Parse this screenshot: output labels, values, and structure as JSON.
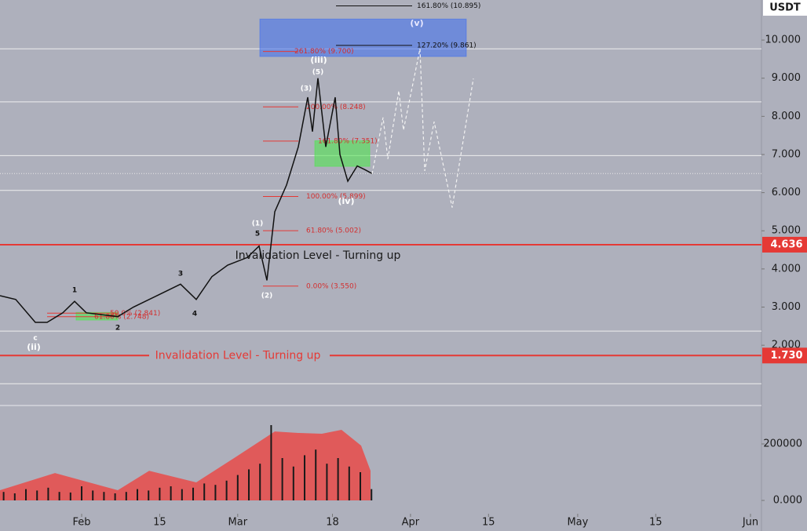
{
  "chart_data": {
    "type": "line",
    "currency": "USDT",
    "xlim": [
      16.35,
      152.97
    ],
    "xticks": [
      {
        "value": 31,
        "label": "Feb"
      },
      {
        "value": 45,
        "label": "15"
      },
      {
        "value": 59,
        "label": "Mar"
      },
      {
        "value": 76,
        "label": "18"
      },
      {
        "value": 90,
        "label": "Apr"
      },
      {
        "value": 104,
        "label": "15"
      },
      {
        "value": 120,
        "label": "May"
      },
      {
        "value": 134,
        "label": "15"
      },
      {
        "value": 151,
        "label": "Jun"
      }
    ],
    "ylim": [
      0.42,
      11.05
    ],
    "yticks": [
      {
        "value": 2,
        "label": "2.000"
      },
      {
        "value": 3,
        "label": "3.000"
      },
      {
        "value": 4,
        "label": "4.000"
      },
      {
        "value": 5,
        "label": "5.000"
      },
      {
        "value": 6,
        "label": "6.000"
      },
      {
        "value": 7,
        "label": "7.000"
      },
      {
        "value": 8,
        "label": "8.000"
      },
      {
        "value": 9,
        "label": "9.000"
      },
      {
        "value": 10,
        "label": "10.000"
      }
    ],
    "series": [
      {
        "color": "#111111",
        "x": [
          16.35,
          19.17,
          22.69,
          24.8,
          27.62,
          29.73,
          31.84,
          34.66,
          37.48,
          40.29,
          44.52,
          48.74,
          51.56,
          54.38,
          57.2,
          60.72,
          62.83,
          64.24,
          65.65,
          67.76,
          69.87,
          71.56,
          72.41,
          73.39,
          74.8,
          76.49,
          77.34,
          78.75,
          80.44,
          81.85,
          83.11
        ],
        "values": [
          3.3,
          3.2,
          2.6,
          2.6,
          2.85,
          3.15,
          2.85,
          2.8,
          2.75,
          3.0,
          3.3,
          3.6,
          3.2,
          3.8,
          4.1,
          4.3,
          4.6,
          3.7,
          5.5,
          6.2,
          7.2,
          8.5,
          7.6,
          9.0,
          7.2,
          8.5,
          7.0,
          6.3,
          6.7,
          6.6,
          6.5
        ]
      },
      {
        "color": "#f2f2f2",
        "dashed": true,
        "x": [
          83.11,
          85.08,
          85.93,
          87.9,
          88.74,
          91.7,
          92.55,
          94.24,
          97.48,
          101.28
        ],
        "values": [
          6.49,
          7.97,
          6.88,
          8.67,
          7.64,
          9.77,
          6.57,
          7.86,
          5.61,
          8.99
        ]
      }
    ],
    "levels": [
      9.77,
      8.38,
      6.97,
      6.06,
      2.37,
      0.99
    ],
    "last_price": 6.5,
    "invalidation": [
      {
        "price": 4.636,
        "text": "Invalidation Level - Turning up",
        "color": "#e53935"
      },
      {
        "price": {
          "value": 1.73,
          "label": "1.730"
        },
        "text": "Invalidation Level - Turning up",
        "color": "#e53935"
      }
    ],
    "zones": [
      {
        "x": [
          62.97,
          100.01
        ],
        "y": [
          9.57,
          10.55
        ],
        "color": "rgba(60,110,240,0.55)"
      },
      {
        "x": [
          72.83,
          82.69
        ],
        "y": [
          6.69,
          7.36
        ],
        "color": "rgba(80,230,80,0.6)"
      },
      {
        "x": [
          30.01,
          37.48
        ],
        "y": [
          2.66,
          2.86
        ],
        "color": "rgba(80,230,80,0.6)"
      }
    ],
    "fibs": [
      {
        "label": "161.80% (10.895)",
        "value": 10.895
      },
      {
        "label": "127.20% (9.861)",
        "value": 9.861
      },
      {
        "label": "261.80% (9.700)",
        "value": 9.7
      },
      {
        "label": "200.00% (8.248)",
        "value": 8.248
      },
      {
        "label": "161.80% (7.351)",
        "value": 7.351
      },
      {
        "label": "100.00% (5.899)",
        "value": 5.899
      },
      {
        "label": "61.80% (5.002)",
        "value": 5.002
      },
      {
        "label": "0.00% (3.550)",
        "value": 3.55
      },
      {
        "label": "50.0% (2.841)",
        "value": 2.841
      },
      {
        "label": "61.80% (2.748)",
        "value": 2.748
      }
    ],
    "wave_labels": [
      "(v)",
      "(iii)",
      "(iv)",
      "(ii)",
      "c",
      "(5)",
      "(3)",
      "(1)",
      "(2)",
      "5",
      "1",
      "2",
      "3",
      "4"
    ],
    "volume": {
      "ylim": [
        -47222,
        336111
      ],
      "yticks": [
        {
          "value": 0,
          "label": "0.000"
        },
        200000
      ],
      "x": [
        17,
        19,
        21,
        23,
        25,
        27,
        29,
        31,
        33,
        35,
        37,
        39,
        41,
        43,
        45,
        47,
        49,
        51,
        53,
        55,
        57,
        59,
        61,
        63,
        65,
        67,
        69,
        71,
        73,
        75,
        77,
        79,
        81,
        83
      ],
      "values": [
        30000,
        25000,
        40000,
        35000,
        45000,
        30000,
        28000,
        50000,
        35000,
        30000,
        25000,
        30000,
        40000,
        35000,
        45000,
        50000,
        40000,
        45000,
        60000,
        55000,
        70000,
        90000,
        110000,
        130000,
        266667,
        150000,
        120000,
        160000,
        180000,
        130000,
        150000,
        120000,
        100000,
        40000
      ],
      "band_x": [
        16.35,
        26.21,
        37.48,
        43.11,
        51.56,
        58.6,
        65.65,
        69.87,
        74.1,
        77.62,
        81.14,
        82.83
      ],
      "band": [
        36000,
        97000,
        36000,
        105000,
        64000,
        153000,
        244000,
        239000,
        236000,
        250000,
        194000,
        105000
      ]
    }
  }
}
